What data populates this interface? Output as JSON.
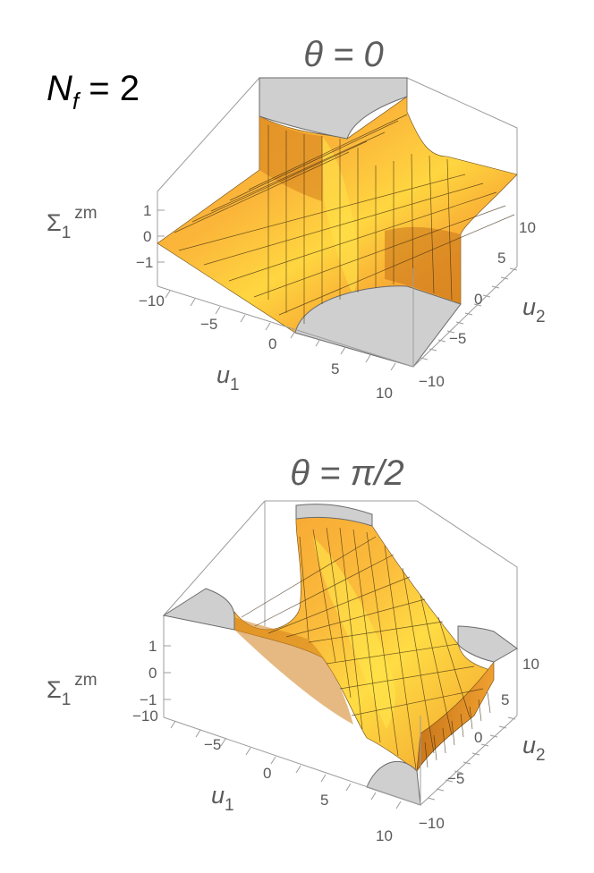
{
  "label": {
    "nf_main": "N",
    "nf_sub": "f",
    "nf_rest": " = 2"
  },
  "colors": {
    "surface_light": "#ffe14a",
    "surface_mid": "#fbb33a",
    "surface_dark": "#d9841e",
    "cap": "#cfcfcf",
    "box": "#9c9c9c"
  },
  "chart_data": [
    {
      "type": "surface3d",
      "title": "θ = 0",
      "xlabel": "u",
      "xlabel_sub": "1",
      "ylabel": "u",
      "ylabel_sub": "2",
      "zlabel": "Σ",
      "zlabel_sub": "1",
      "zlabel_sup": "zm",
      "xlim": [
        -10,
        10
      ],
      "ylim": [
        -10,
        10
      ],
      "zlim": [
        -1.5,
        1.5
      ],
      "x_ticks": [
        "−10",
        "−5",
        "0",
        "5",
        "10"
      ],
      "y_ticks": [
        "−10",
        "−5",
        "0",
        "5",
        "10"
      ],
      "z_ticks": [
        "1",
        "0",
        "−1"
      ],
      "clipped_regions": [
        "u1<0,u2>0 corner (top)",
        "u1>0,u2<0 corner (bottom)"
      ]
    },
    {
      "type": "surface3d",
      "title": "θ = π/2",
      "xlabel": "u",
      "xlabel_sub": "1",
      "ylabel": "u",
      "ylabel_sub": "2",
      "zlabel": "Σ",
      "zlabel_sub": "1",
      "zlabel_sup": "zm",
      "xlim": [
        -10,
        10
      ],
      "ylim": [
        -10,
        10
      ],
      "zlim": [
        -1.5,
        1.5
      ],
      "x_ticks": [
        "−10",
        "−5",
        "0",
        "5",
        "10"
      ],
      "y_ticks": [
        "−10",
        "−5",
        "0",
        "5",
        "10"
      ],
      "z_ticks": [
        "1",
        "0",
        "−1"
      ],
      "clipped_regions": [
        "top corner",
        "left corner",
        "right corner",
        "bottom corner"
      ]
    }
  ]
}
